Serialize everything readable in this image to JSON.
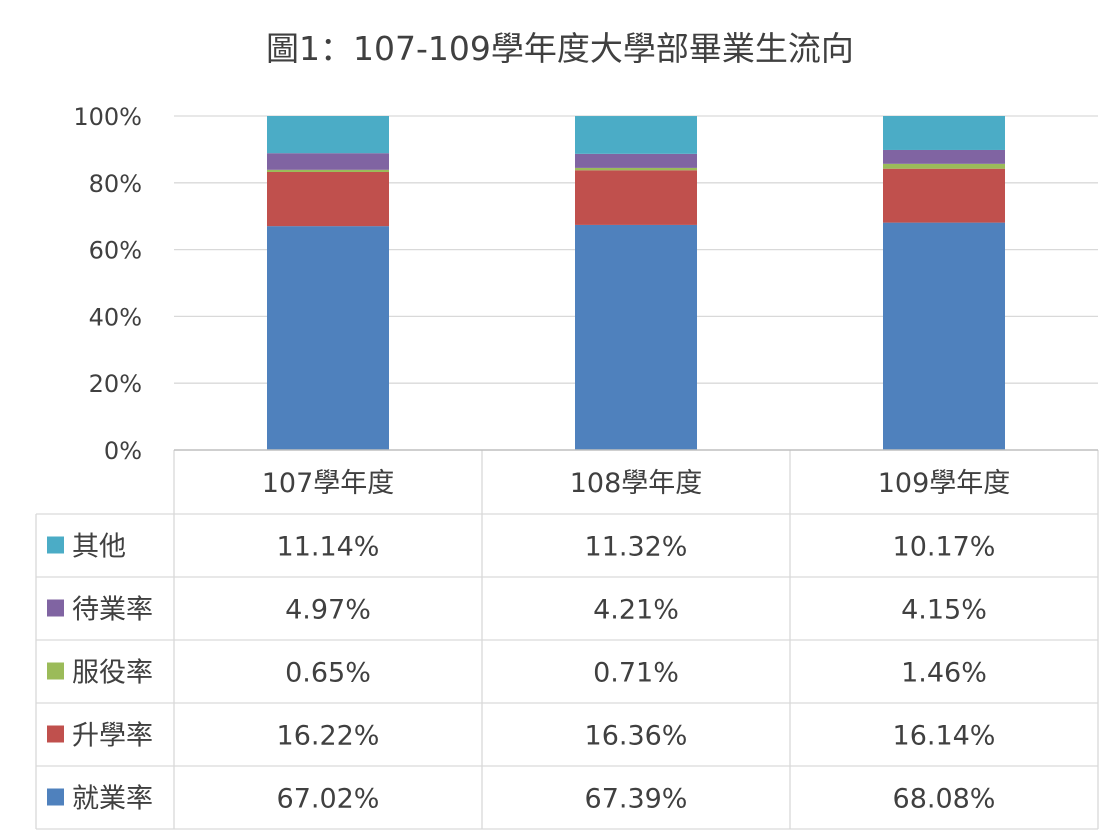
{
  "chart_data": {
    "type": "bar",
    "stacked": true,
    "title": "圖1：107-109學年度大學部畢業生流向",
    "categories": [
      "107學年度",
      "108學年度",
      "109學年度"
    ],
    "series": [
      {
        "name": "就業率",
        "color": "#4f81bd",
        "values": [
          67.02,
          67.39,
          68.08
        ],
        "labels": [
          "67.02%",
          "67.39%",
          "68.08%"
        ]
      },
      {
        "name": "升學率",
        "color": "#c0504d",
        "values": [
          16.22,
          16.36,
          16.14
        ],
        "labels": [
          "16.22%",
          "16.36%",
          "16.14%"
        ]
      },
      {
        "name": "服役率",
        "color": "#9bbb59",
        "values": [
          0.65,
          0.71,
          1.46
        ],
        "labels": [
          "0.65%",
          "0.71%",
          "1.46%"
        ]
      },
      {
        "name": "待業率",
        "color": "#8064a2",
        "values": [
          4.97,
          4.21,
          4.15
        ],
        "labels": [
          "4.97%",
          "4.21%",
          "4.15%"
        ]
      },
      {
        "name": "其他",
        "color": "#4bacc6",
        "values": [
          11.14,
          11.32,
          10.17
        ],
        "labels": [
          "11.14%",
          "11.32%",
          "10.17%"
        ]
      }
    ],
    "table_row_order": [
      "其他",
      "待業率",
      "服役率",
      "升學率",
      "就業率"
    ],
    "ylim": [
      0,
      100
    ],
    "yticks": [
      "0%",
      "20%",
      "40%",
      "60%",
      "80%",
      "100%"
    ],
    "grid": true,
    "legend": "data-table"
  }
}
